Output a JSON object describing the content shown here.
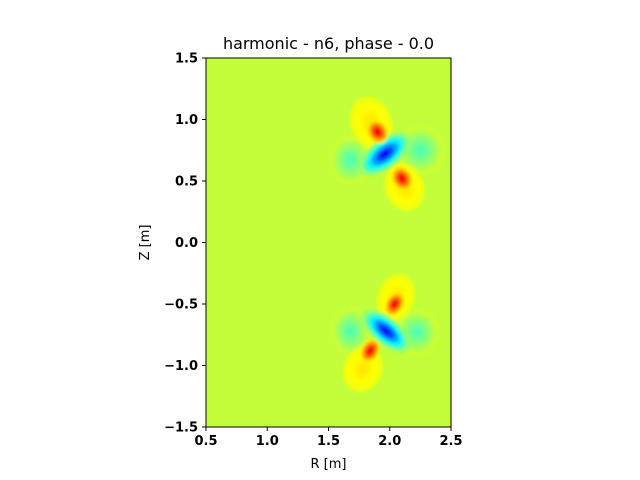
{
  "chart_data": {
    "type": "heatmap",
    "title": "harmonic - n6, phase - 0.0",
    "xlabel": "R [m]",
    "ylabel": "Z [m]",
    "xlim": [
      0.5,
      2.5
    ],
    "ylim": [
      -1.5,
      1.5
    ],
    "xticks": [
      0.5,
      1.0,
      1.5,
      2.0,
      2.5
    ],
    "xtick_labels": [
      "0.5",
      "1.0",
      "1.5",
      "2.0",
      "2.5"
    ],
    "yticks": [
      -1.5,
      -1.0,
      -0.5,
      0.0,
      0.5,
      1.0,
      1.5
    ],
    "ytick_labels": [
      "−1.5",
      "−1.0",
      "−0.5",
      "0.0",
      "0.5",
      "1.0",
      "1.5"
    ],
    "grid": false,
    "colormap": "jet",
    "background_color": "#c2ff3a",
    "structures": [
      {
        "name": "upper",
        "center": [
          2.0,
          0.73
        ],
        "lobes": [
          {
            "c": [
              1.85,
              0.97
            ],
            "level": 0.65
          },
          {
            "c": [
              2.12,
              0.45
            ],
            "level": 0.65
          },
          {
            "c": [
              1.68,
              0.67
            ],
            "level": 0.45
          },
          {
            "c": [
              2.25,
              0.75
            ],
            "level": 0.45
          },
          {
            "c": [
              1.9,
              0.9
            ],
            "level": 0.9
          },
          {
            "c": [
              2.1,
              0.52
            ],
            "level": 0.9
          },
          {
            "c": [
              1.96,
              0.72
            ],
            "level": 0.12
          }
        ]
      },
      {
        "name": "lower",
        "center": [
          1.95,
          -0.7
        ],
        "lobes": [
          {
            "c": [
              2.05,
              -0.45
            ],
            "level": 0.65
          },
          {
            "c": [
              1.78,
              -1.03
            ],
            "level": 0.65
          },
          {
            "c": [
              1.68,
              -0.72
            ],
            "level": 0.45
          },
          {
            "c": [
              2.22,
              -0.73
            ],
            "level": 0.45
          },
          {
            "c": [
              2.04,
              -0.5
            ],
            "level": 0.9
          },
          {
            "c": [
              1.84,
              -0.88
            ],
            "level": 0.9
          },
          {
            "c": [
              1.97,
              -0.72
            ],
            "level": 0.12
          }
        ]
      }
    ]
  }
}
